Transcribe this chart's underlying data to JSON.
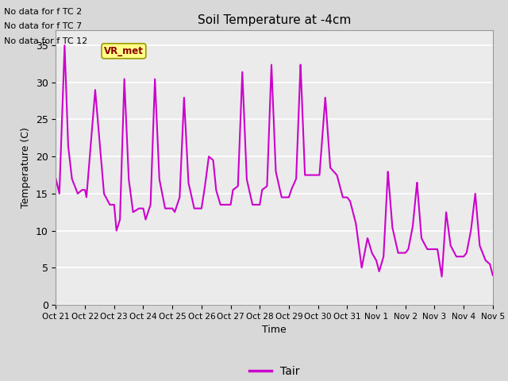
{
  "title": "Soil Temperature at -4cm",
  "xlabel": "Time",
  "ylabel": "Temperature (C)",
  "ylim": [
    0,
    37
  ],
  "yticks": [
    0,
    5,
    10,
    15,
    20,
    25,
    30,
    35
  ],
  "line_color": "#CC00CC",
  "line_width": 1.5,
  "legend_label": "Tair",
  "no_data_texts": [
    "No data for f TC 2",
    "No data for f TC 7",
    "No data for f TC 12"
  ],
  "annotation_text": "VR_met",
  "bg_color": "#D8D8D8",
  "plot_bg_color": "#EBEBEB",
  "xtick_labels": [
    "Oct 21",
    "Oct 22",
    "Oct 23",
    "Oct 24",
    "Oct 25",
    "Oct 26",
    "Oct 27",
    "Oct 28",
    "Oct 29",
    "Oct 30",
    "Oct 31",
    "Nov 1",
    "Nov 2",
    "Nov 3",
    "Nov 4",
    "Nov 5"
  ],
  "grid_color": "white",
  "grid_lw": 1.2,
  "keypoints_x": [
    0.0,
    0.12,
    0.3,
    0.42,
    0.55,
    0.75,
    0.9,
    1.0,
    1.05,
    1.35,
    1.5,
    1.65,
    1.85,
    2.0,
    2.08,
    2.2,
    2.35,
    2.5,
    2.65,
    2.85,
    3.0,
    3.08,
    3.25,
    3.4,
    3.55,
    3.75,
    3.9,
    4.0,
    4.08,
    4.25,
    4.4,
    4.55,
    4.75,
    4.9,
    5.0,
    5.1,
    5.25,
    5.4,
    5.5,
    5.65,
    5.85,
    6.0,
    6.08,
    6.25,
    6.4,
    6.55,
    6.75,
    6.9,
    7.0,
    7.08,
    7.25,
    7.4,
    7.55,
    7.75,
    7.9,
    8.0,
    8.08,
    8.25,
    8.4,
    8.55,
    8.75,
    8.9,
    9.0,
    9.05,
    9.25,
    9.42,
    9.65,
    9.85,
    10.0,
    10.1,
    10.3,
    10.5,
    10.7,
    10.85,
    11.0,
    11.1,
    11.25,
    11.4,
    11.55,
    11.75,
    11.9,
    12.0,
    12.1,
    12.25,
    12.4,
    12.55,
    12.75,
    12.9,
    13.0,
    13.1,
    13.25,
    13.4,
    13.55,
    13.75,
    13.9,
    14.0,
    14.1,
    14.25,
    14.4,
    14.55,
    14.75,
    14.9,
    15.0
  ],
  "keypoints_y": [
    17.0,
    15.0,
    35.0,
    21.5,
    17.0,
    15.0,
    15.5,
    15.5,
    14.5,
    29.0,
    22.0,
    15.0,
    13.5,
    13.5,
    10.0,
    11.5,
    30.5,
    17.0,
    12.5,
    13.0,
    13.0,
    11.5,
    13.5,
    30.5,
    17.0,
    13.0,
    13.0,
    13.0,
    12.5,
    14.5,
    28.0,
    16.5,
    13.0,
    13.0,
    13.0,
    15.5,
    20.0,
    19.5,
    15.5,
    13.5,
    13.5,
    13.5,
    15.5,
    16.0,
    31.5,
    17.0,
    13.5,
    13.5,
    13.5,
    15.5,
    16.0,
    32.5,
    18.0,
    14.5,
    14.5,
    14.5,
    15.5,
    17.0,
    32.5,
    17.5,
    17.5,
    17.5,
    17.5,
    17.5,
    28.0,
    18.5,
    17.5,
    14.5,
    14.5,
    14.0,
    11.0,
    5.0,
    9.0,
    7.0,
    6.0,
    4.5,
    6.5,
    18.0,
    10.5,
    7.0,
    7.0,
    7.0,
    7.5,
    10.5,
    16.5,
    9.0,
    7.5,
    7.5,
    7.5,
    7.5,
    3.8,
    12.5,
    8.0,
    6.5,
    6.5,
    6.5,
    7.0,
    10.0,
    15.0,
    8.0,
    6.0,
    5.5,
    4.0
  ]
}
